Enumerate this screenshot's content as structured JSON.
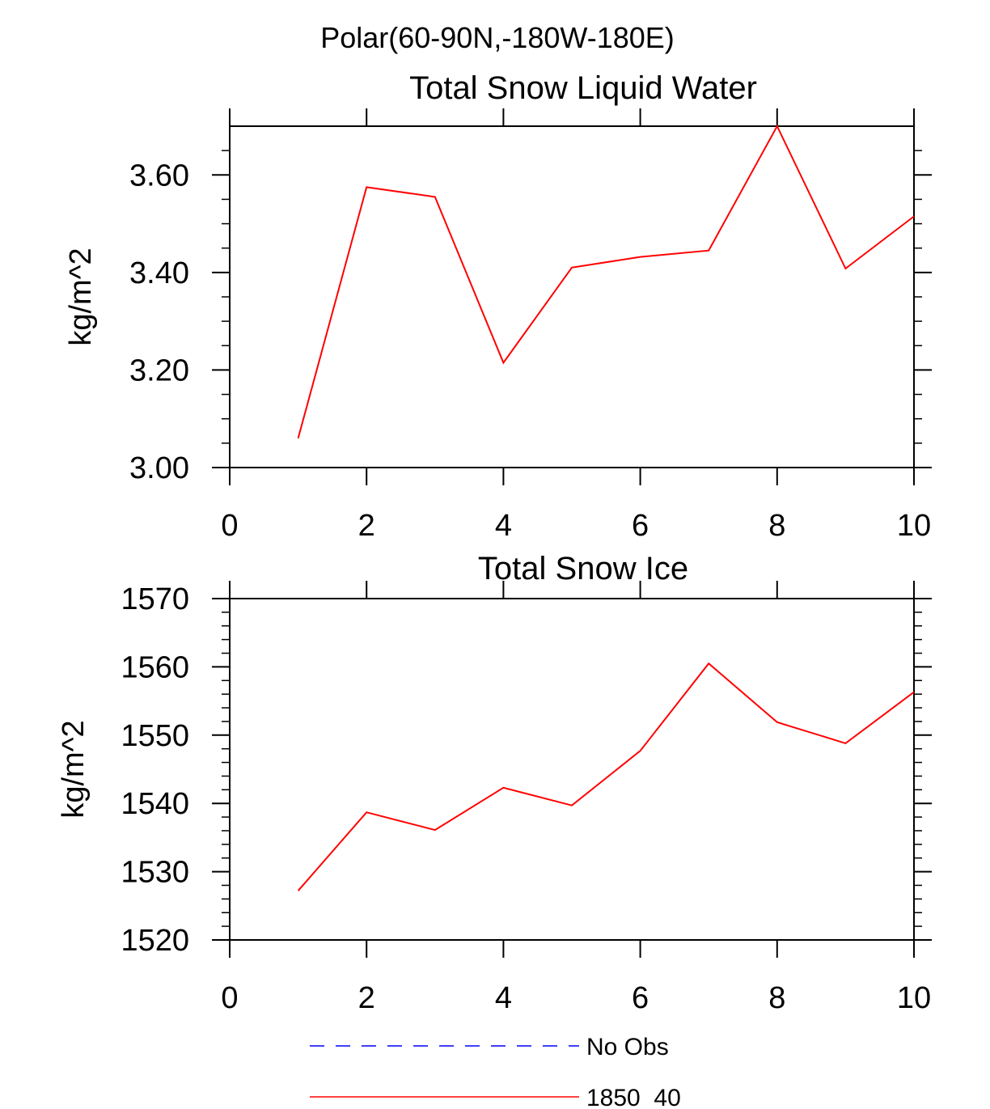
{
  "figure": {
    "title": "Polar(60-90N,-180W-180E)"
  },
  "chart_data": [
    {
      "type": "line",
      "title": "Total Snow Liquid Water",
      "xlabel": "",
      "ylabel": "kg/m^2",
      "xlim": [
        0,
        10
      ],
      "ylim": [
        3.0,
        3.7
      ],
      "x_ticks": [
        0,
        2,
        4,
        6,
        8,
        10
      ],
      "x_tick_labels": [
        "0",
        "2",
        "4",
        "6",
        "8",
        "10"
      ],
      "y_ticks": [
        3.0,
        3.2,
        3.4,
        3.6
      ],
      "y_tick_labels": [
        "3.00",
        "3.20",
        "3.40",
        "3.60"
      ],
      "y_minor_step": 0.05,
      "grid": false,
      "series": [
        {
          "name": "1850_40",
          "color": "#ff0000",
          "x": [
            1,
            2,
            3,
            4,
            5,
            6,
            7,
            8,
            9,
            10
          ],
          "y": [
            3.06,
            3.575,
            3.555,
            3.215,
            3.41,
            3.432,
            3.445,
            3.7,
            3.408,
            3.515
          ]
        }
      ]
    },
    {
      "type": "line",
      "title": "Total Snow Ice",
      "xlabel": "",
      "ylabel": "kg/m^2",
      "xlim": [
        0,
        10
      ],
      "ylim": [
        1520,
        1570
      ],
      "x_ticks": [
        0,
        2,
        4,
        6,
        8,
        10
      ],
      "x_tick_labels": [
        "0",
        "2",
        "4",
        "6",
        "8",
        "10"
      ],
      "y_ticks": [
        1520,
        1530,
        1540,
        1550,
        1560,
        1570
      ],
      "y_tick_labels": [
        "1520",
        "1530",
        "1540",
        "1550",
        "1560",
        "1570"
      ],
      "y_minor_step": 2,
      "grid": false,
      "series": [
        {
          "name": "1850_40",
          "color": "#ff0000",
          "x": [
            1,
            2,
            3,
            4,
            5,
            6,
            7,
            8,
            9,
            10
          ],
          "y": [
            1527.2,
            1538.7,
            1536.1,
            1542.3,
            1539.7,
            1547.7,
            1560.5,
            1551.9,
            1548.8,
            1556.3
          ]
        }
      ]
    }
  ],
  "legend": {
    "position": "bottom",
    "items": [
      {
        "label": "No Obs",
        "color": "#0000ff",
        "style": "dashed"
      },
      {
        "label": "1850_40",
        "color": "#ff0000",
        "style": "solid"
      }
    ]
  }
}
